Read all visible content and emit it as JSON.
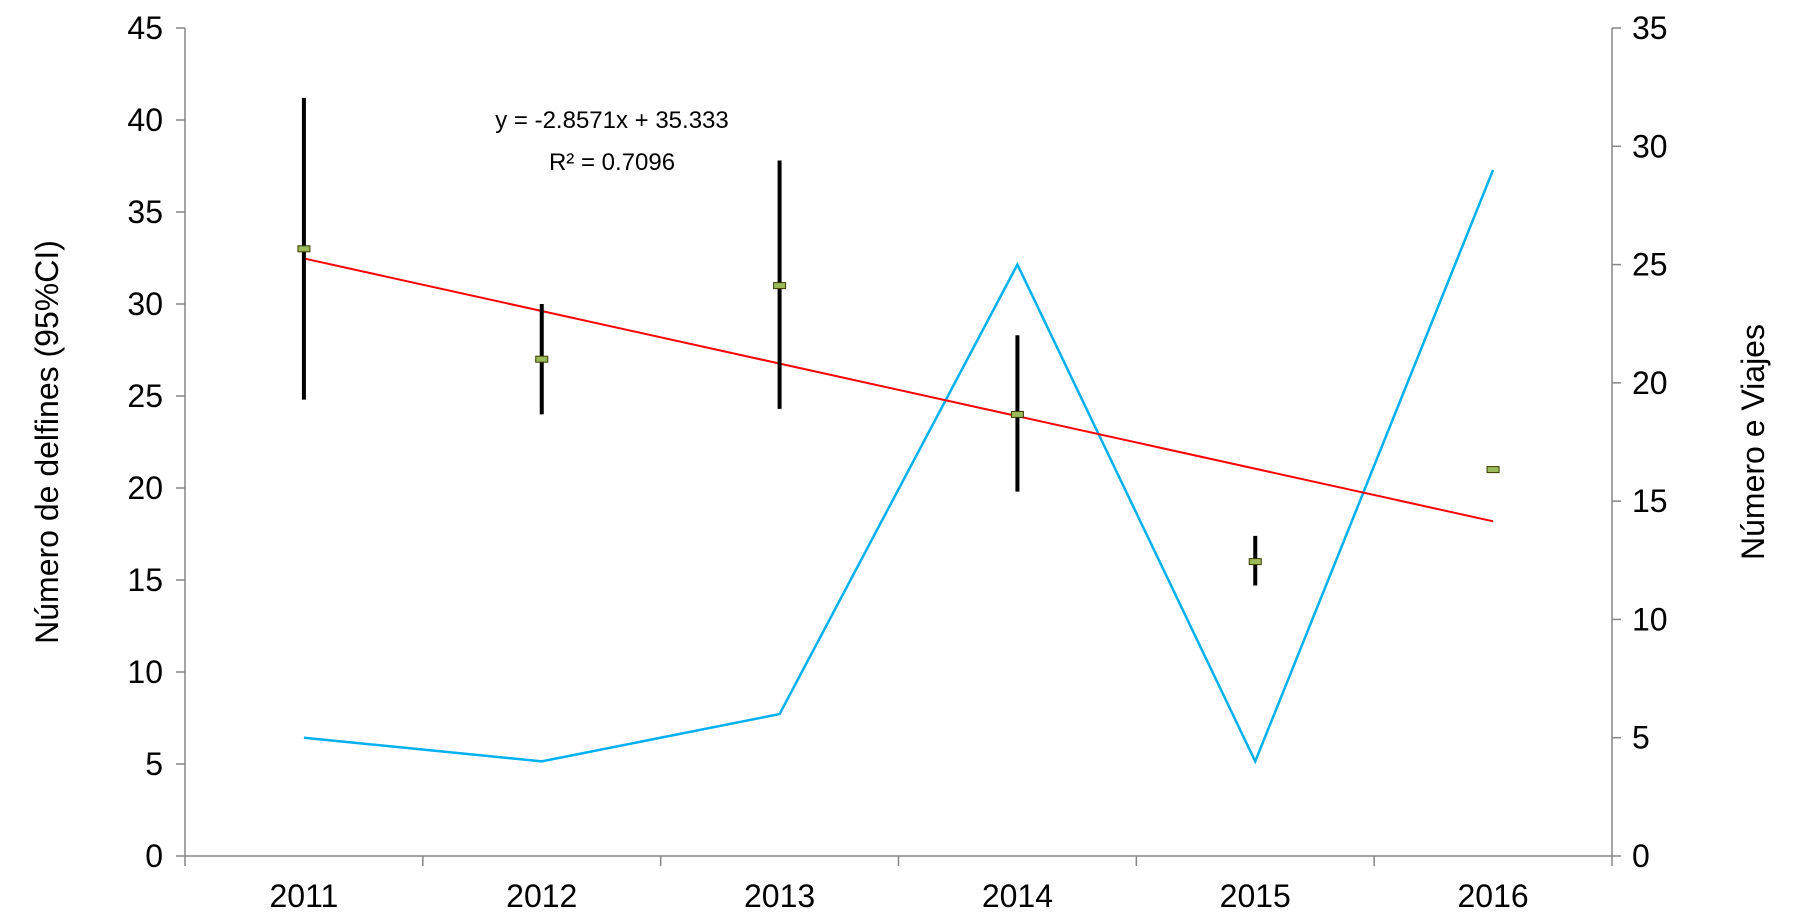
{
  "chart_data": {
    "type": "line",
    "categories": [
      "2011",
      "2012",
      "2013",
      "2014",
      "2015",
      "2016"
    ],
    "left_axis": {
      "label": "Número de delfines (95%CI)",
      "ylim": [
        0,
        45
      ],
      "ticks": [
        "0",
        "5",
        "10",
        "15",
        "20",
        "25",
        "30",
        "35",
        "40",
        "45"
      ]
    },
    "right_axis": {
      "label": "Número e Viajes",
      "ylim": [
        0,
        35
      ],
      "ticks": [
        "0",
        "5",
        "10",
        "15",
        "20",
        "25",
        "30",
        "35"
      ]
    },
    "series": [
      {
        "axis": "left",
        "style": "point-with-error-bars",
        "values": [
          33,
          27,
          31,
          24,
          16,
          21
        ],
        "ci_low": [
          24.8,
          24.0,
          24.3,
          19.8,
          14.7,
          null
        ],
        "ci_high": [
          41.2,
          30.0,
          37.8,
          28.3,
          17.4,
          null
        ],
        "marker_color": "#9BBB59",
        "bar_color": "#000000"
      },
      {
        "axis": "right",
        "style": "line",
        "values": [
          5,
          4,
          6,
          25,
          4,
          29
        ],
        "color": "#00B0F0"
      }
    ],
    "trendline": {
      "axis": "left",
      "slope": -2.8571,
      "intercept": 35.333,
      "equation": "y = -2.8571x + 35.333",
      "r2": "R² = 0.7096",
      "color": "#FF0000"
    },
    "grid": false,
    "legend": "none"
  }
}
